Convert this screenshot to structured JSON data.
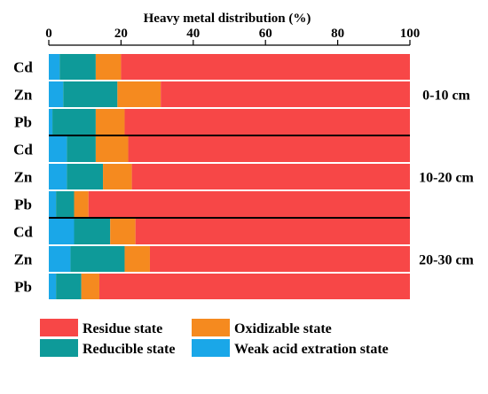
{
  "chart_data": {
    "type": "bar",
    "orientation": "horizontal",
    "stacked": true,
    "xlabel": "Heavy metal distribution (%)",
    "xlim": [
      0,
      100
    ],
    "xticks": [
      "0",
      "20",
      "40",
      "60",
      "80",
      "100"
    ],
    "categories": [
      "Cd",
      "Zn",
      "Pb",
      "Cd",
      "Zn",
      "Pb",
      "Cd",
      "Zn",
      "Pb"
    ],
    "groups": [
      {
        "label": "0-10 cm",
        "rows": [
          0,
          1,
          2
        ]
      },
      {
        "label": "10-20 cm",
        "rows": [
          3,
          4,
          5
        ]
      },
      {
        "label": "20-30 cm",
        "rows": [
          6,
          7,
          8
        ]
      }
    ],
    "series": [
      {
        "name": "Weak acid extration state",
        "color": "#1aa7e8",
        "values": [
          3,
          4,
          1,
          5,
          5,
          2,
          7,
          6,
          2
        ]
      },
      {
        "name": "Reducible state",
        "color": "#0e9a99",
        "values": [
          10,
          15,
          12,
          8,
          10,
          5,
          10,
          15,
          7
        ]
      },
      {
        "name": "Oxidizable state",
        "color": "#f58a1f",
        "values": [
          7,
          12,
          8,
          9,
          8,
          4,
          7,
          7,
          5
        ]
      },
      {
        "name": "Residue state",
        "color": "#f74747",
        "values": [
          80,
          69,
          79,
          78,
          77,
          89,
          76,
          72,
          86
        ]
      }
    ],
    "legend": {
      "placement": "bottom",
      "order": [
        "Residue state",
        "Oxidizable state",
        "Reducible state",
        "Weak acid extration state"
      ]
    }
  }
}
